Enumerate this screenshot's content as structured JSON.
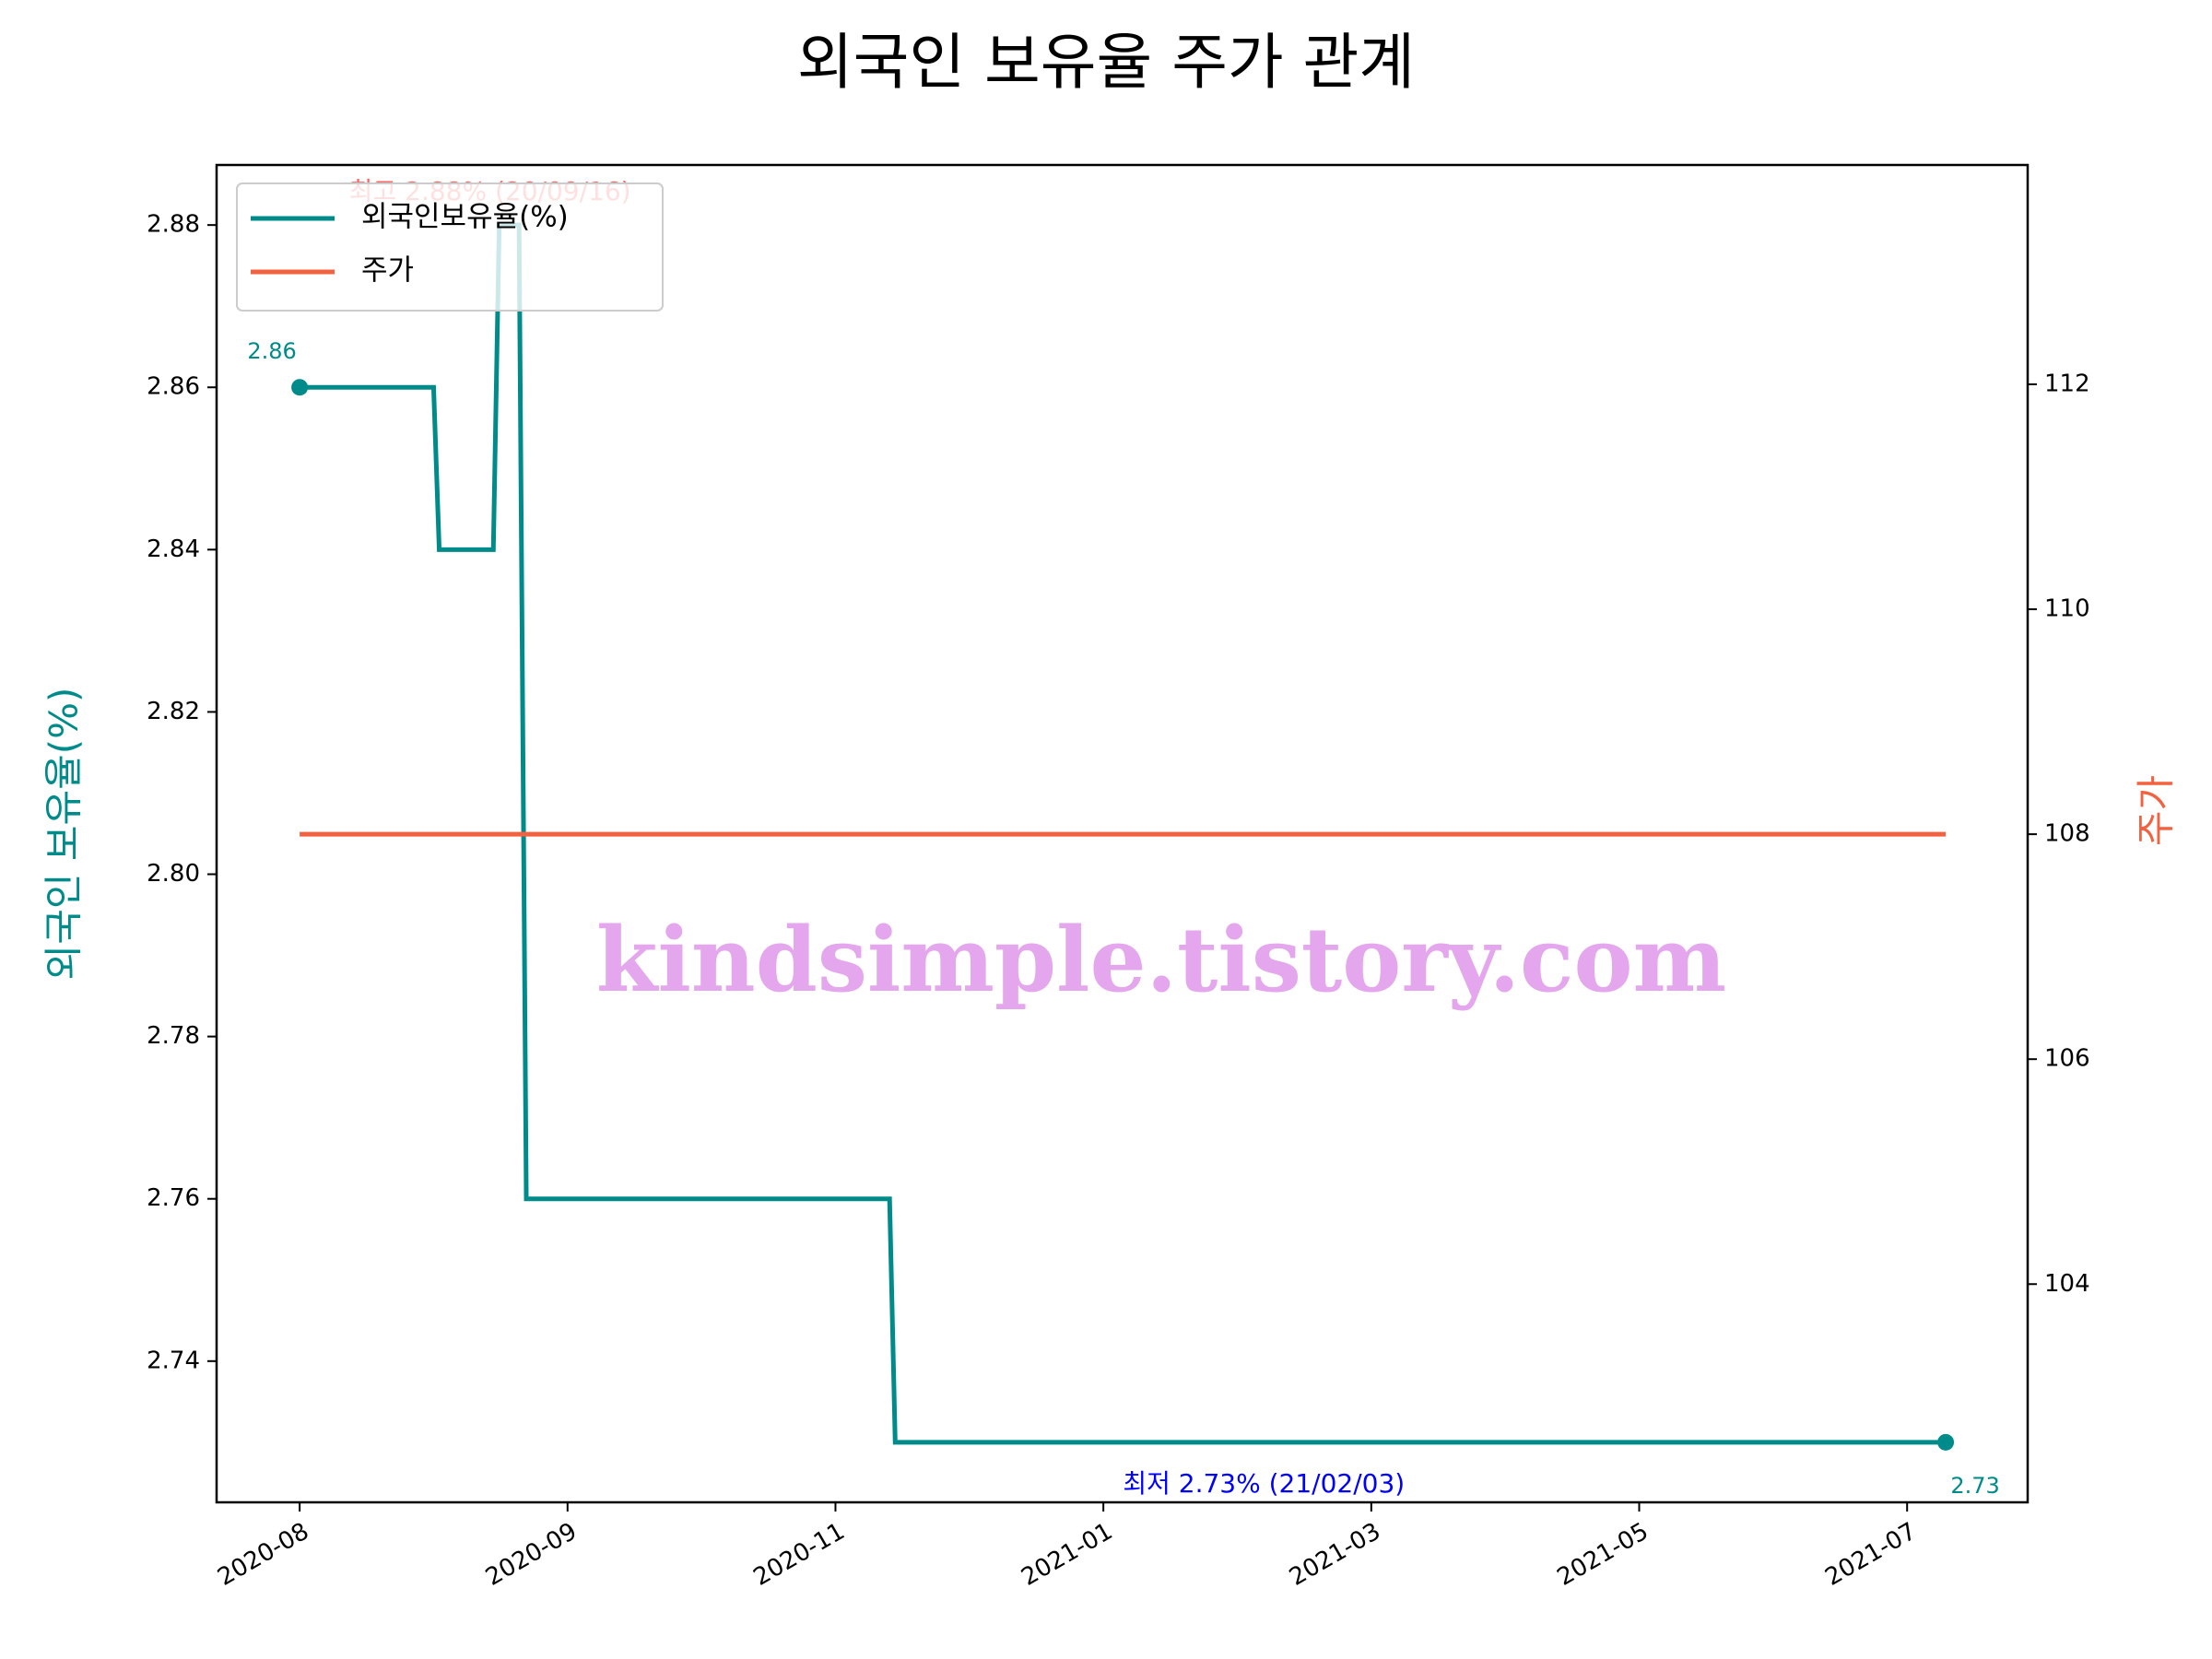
{
  "chart_data": {
    "type": "line",
    "title": "외국인 보유율 주가 관계",
    "ylabel": "외국인 보유율(%)",
    "y2label": "주가",
    "watermark": "kindsimple.tistory.com",
    "x": [
      0,
      0.5,
      0.521,
      0.723,
      0.745,
      0.819,
      0.846,
      2.202,
      2.223,
      6.144
    ],
    "xlim": [
      -0.31,
      6.45
    ],
    "xticks": [
      {
        "value": 0,
        "label": "2020-08"
      },
      {
        "value": 1,
        "label": "2020-09"
      },
      {
        "value": 2,
        "label": "2020-11"
      },
      {
        "value": 3,
        "label": "2021-01"
      },
      {
        "value": 4,
        "label": "2021-03"
      },
      {
        "value": 5,
        "label": "2021-05"
      },
      {
        "value": 6,
        "label": "2021-07"
      }
    ],
    "ylim": [
      2.7226,
      2.8874
    ],
    "yticks": [
      2.74,
      2.76,
      2.78,
      {
        "value": 2.8,
        "label": "2.80"
      },
      2.82,
      2.84,
      2.86,
      2.88
    ],
    "y2lim": [
      102.06,
      113.95
    ],
    "y2ticks": [
      104,
      106,
      108,
      110,
      112
    ],
    "legend": "upper left",
    "series": [
      {
        "name": "외국인보유율(%)",
        "color": "#008b8b",
        "values": [
          2.86,
          2.86,
          2.84,
          2.84,
          2.88,
          2.88,
          2.76,
          2.76,
          2.73,
          2.73
        ],
        "value_labels": [
          "2.86",
          null,
          null,
          null,
          null,
          null,
          null,
          null,
          null,
          "2.73"
        ]
      },
      {
        "name": "주가",
        "color": "#f4613f",
        "axis": "y2",
        "values": [
          108,
          108,
          108,
          108,
          108,
          108,
          108,
          108,
          108,
          108
        ]
      }
    ],
    "annotations": {
      "max": {
        "text": "최고 2.88% (20/09/16)",
        "color": "#ff0000"
      },
      "min": {
        "text": "최저 2.73% (21/02/03)",
        "color": "#0000ff"
      }
    }
  }
}
